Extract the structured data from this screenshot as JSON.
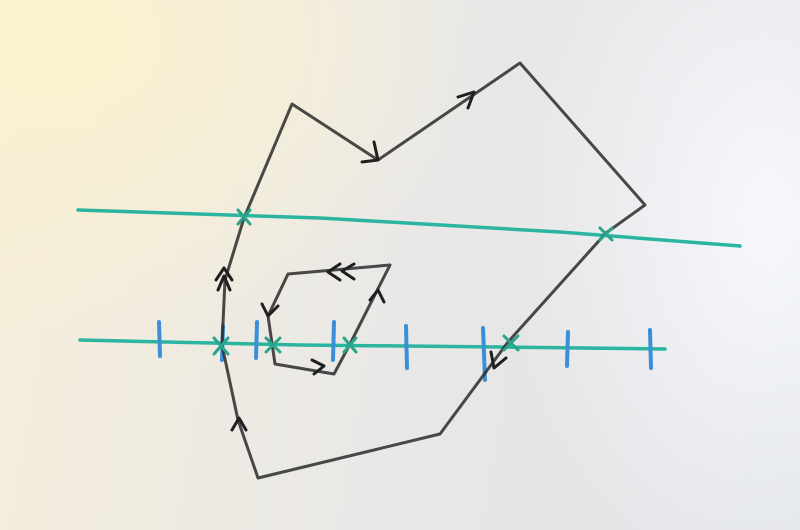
{
  "scene": {
    "description_colors": {
      "whiteboard": "#ebe9e6",
      "black_marker": "#2a2a2a",
      "teal_marker": "#2bb5a0",
      "blue_marker": "#3a8fd8"
    }
  }
}
